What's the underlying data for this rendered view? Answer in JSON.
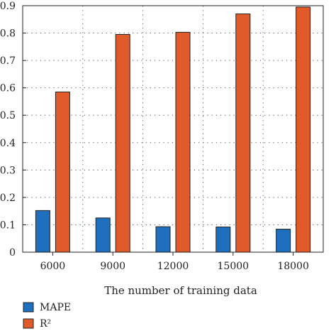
{
  "chart_data": {
    "type": "bar",
    "xlabel": "The number of training data",
    "ylabel": "",
    "ylim": [
      0,
      0.9
    ],
    "yticks": [
      "0",
      "0.1",
      "0.2",
      "0.3",
      "0.4",
      "0.5",
      "0.6",
      "0.7",
      "0.8",
      "0.9"
    ],
    "categories": [
      "6000",
      "9000",
      "12000",
      "15000",
      "18000"
    ],
    "series": [
      {
        "name": "MAPE",
        "color": "#1f6fbf",
        "values": [
          0.152,
          0.125,
          0.093,
          0.092,
          0.084
        ]
      },
      {
        "name": "R²",
        "color": "#e15a2a",
        "values": [
          0.585,
          0.795,
          0.803,
          0.87,
          0.895
        ]
      }
    ],
    "grid": true,
    "legend_position": "bottom-left"
  }
}
